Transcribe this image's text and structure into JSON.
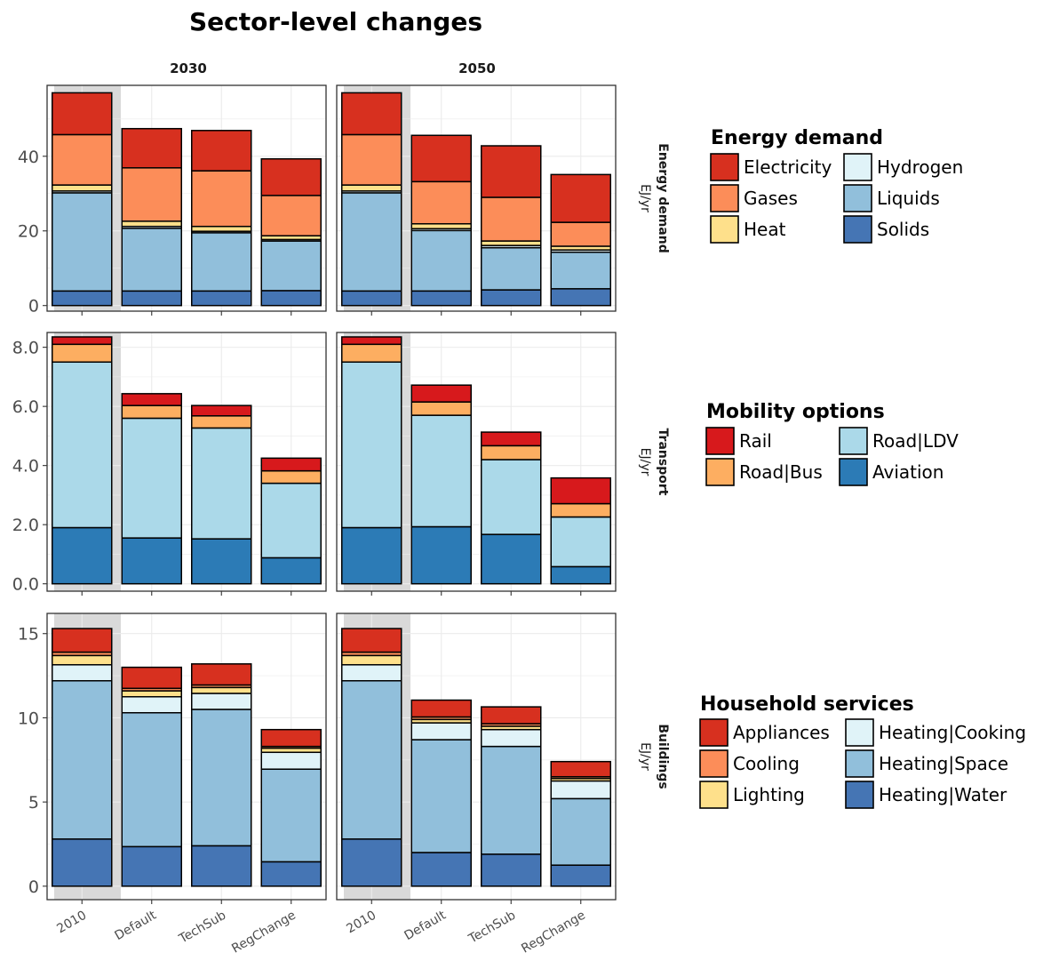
{
  "title": "Sector-level changes",
  "facet_columns": [
    "2030",
    "2050"
  ],
  "categories": [
    "2010",
    "Default",
    "TechSub",
    "RegChange"
  ],
  "chart_data": [
    {
      "type": "bar",
      "stacked": true,
      "panel_label": "Energy demand",
      "ylabel": "EJ/yr",
      "ylim": [
        -1.5,
        59
      ],
      "yticks": [
        0,
        20,
        40
      ],
      "tick_format": "int",
      "legend": {
        "title": "Energy demand",
        "placement": "right",
        "entries": [
          "Electricity",
          "Gases",
          "Heat",
          "Hydrogen",
          "Liquids",
          "Solids"
        ]
      },
      "stack_order": [
        "Solids",
        "Liquids",
        "Hydrogen",
        "Heat",
        "Gases",
        "Electricity"
      ],
      "colors": {
        "Electricity": "#d7301f",
        "Gases": "#fc8d59",
        "Heat": "#fee08b",
        "Hydrogen": "#e0f3f8",
        "Liquids": "#91bfdb",
        "Solids": "#4575b4"
      },
      "panels": [
        {
          "column": "2030",
          "series": [
            {
              "name": "Solids",
              "values": [
                3.9,
                3.9,
                3.9,
                4.0
              ]
            },
            {
              "name": "Liquids",
              "values": [
                26.3,
                16.8,
                15.6,
                13.3
              ]
            },
            {
              "name": "Hydrogen",
              "values": [
                0.5,
                0.5,
                0.4,
                0.4
              ]
            },
            {
              "name": "Heat",
              "values": [
                1.6,
                1.4,
                1.3,
                1.0
              ]
            },
            {
              "name": "Gases",
              "values": [
                13.5,
                14.3,
                14.9,
                10.8
              ]
            },
            {
              "name": "Electricity",
              "values": [
                11.2,
                10.5,
                10.8,
                9.8
              ]
            }
          ]
        },
        {
          "column": "2050",
          "series": [
            {
              "name": "Solids",
              "values": [
                3.9,
                3.9,
                4.2,
                4.5
              ]
            },
            {
              "name": "Liquids",
              "values": [
                26.3,
                16.2,
                11.3,
                9.8
              ]
            },
            {
              "name": "Hydrogen",
              "values": [
                0.5,
                0.5,
                0.6,
                0.6
              ]
            },
            {
              "name": "Heat",
              "values": [
                1.6,
                1.3,
                1.2,
                1.0
              ]
            },
            {
              "name": "Gases",
              "values": [
                13.5,
                11.3,
                11.7,
                6.4
              ]
            },
            {
              "name": "Electricity",
              "values": [
                11.2,
                12.4,
                13.8,
                12.8
              ]
            }
          ]
        }
      ]
    },
    {
      "type": "bar",
      "stacked": true,
      "panel_label": "Transport",
      "ylabel": "EJ/yr",
      "ylim": [
        -0.25,
        8.5
      ],
      "yticks": [
        0,
        2,
        4,
        6,
        8
      ],
      "tick_format": "fixed1",
      "legend": {
        "title": "Mobility options",
        "placement": "right",
        "entries": [
          "Rail",
          "Road|Bus",
          "Road|LDV",
          "Aviation"
        ]
      },
      "stack_order": [
        "Aviation",
        "Road|LDV",
        "Road|Bus",
        "Rail"
      ],
      "colors": {
        "Rail": "#d7191c",
        "Road|Bus": "#fdae61",
        "Road|LDV": "#abd9e9",
        "Aviation": "#2c7bb6"
      },
      "panels": [
        {
          "column": "2030",
          "series": [
            {
              "name": "Aviation",
              "values": [
                1.9,
                1.55,
                1.52,
                0.88
              ]
            },
            {
              "name": "Road|LDV",
              "values": [
                5.6,
                4.05,
                3.75,
                2.52
              ]
            },
            {
              "name": "Road|Bus",
              "values": [
                0.6,
                0.43,
                0.41,
                0.42
              ]
            },
            {
              "name": "Rail",
              "values": [
                0.25,
                0.4,
                0.35,
                0.43
              ]
            }
          ]
        },
        {
          "column": "2050",
          "series": [
            {
              "name": "Aviation",
              "values": [
                1.9,
                1.93,
                1.67,
                0.58
              ]
            },
            {
              "name": "Road|LDV",
              "values": [
                5.6,
                3.77,
                2.53,
                1.68
              ]
            },
            {
              "name": "Road|Bus",
              "values": [
                0.6,
                0.45,
                0.47,
                0.45
              ]
            },
            {
              "name": "Rail",
              "values": [
                0.25,
                0.57,
                0.46,
                0.87
              ]
            }
          ]
        }
      ]
    },
    {
      "type": "bar",
      "stacked": true,
      "panel_label": "Buildings",
      "ylabel": "EJ/yr",
      "ylim": [
        -0.8,
        16.2
      ],
      "yticks": [
        0,
        5,
        10,
        15
      ],
      "tick_format": "int",
      "legend": {
        "title": "Household services",
        "placement": "right",
        "entries": [
          "Appliances",
          "Cooling",
          "Lighting",
          "Heating|Cooking",
          "Heating|Space",
          "Heating|Water"
        ]
      },
      "stack_order": [
        "Heating|Water",
        "Heating|Space",
        "Heating|Cooking",
        "Lighting",
        "Cooling",
        "Appliances"
      ],
      "colors": {
        "Appliances": "#d7301f",
        "Cooling": "#fc8d59",
        "Lighting": "#fee08b",
        "Heating|Cooking": "#e0f3f8",
        "Heating|Space": "#91bfdb",
        "Heating|Water": "#4575b4"
      },
      "panels": [
        {
          "column": "2030",
          "series": [
            {
              "name": "Heating|Water",
              "values": [
                2.8,
                2.35,
                2.4,
                1.45
              ]
            },
            {
              "name": "Heating|Space",
              "values": [
                9.4,
                7.95,
                8.1,
                5.5
              ]
            },
            {
              "name": "Heating|Cooking",
              "values": [
                0.95,
                0.95,
                0.95,
                1.0
              ]
            },
            {
              "name": "Lighting",
              "values": [
                0.55,
                0.35,
                0.35,
                0.25
              ]
            },
            {
              "name": "Cooling",
              "values": [
                0.2,
                0.15,
                0.15,
                0.1
              ]
            },
            {
              "name": "Appliances",
              "values": [
                1.4,
                1.25,
                1.25,
                1.0
              ]
            }
          ]
        },
        {
          "column": "2050",
          "series": [
            {
              "name": "Heating|Water",
              "values": [
                2.8,
                2.0,
                1.9,
                1.25
              ]
            },
            {
              "name": "Heating|Space",
              "values": [
                9.4,
                6.7,
                6.4,
                3.95
              ]
            },
            {
              "name": "Heating|Cooking",
              "values": [
                0.95,
                1.0,
                1.0,
                1.05
              ]
            },
            {
              "name": "Lighting",
              "values": [
                0.55,
                0.2,
                0.2,
                0.15
              ]
            },
            {
              "name": "Cooling",
              "values": [
                0.2,
                0.15,
                0.15,
                0.1
              ]
            },
            {
              "name": "Appliances",
              "values": [
                1.4,
                1.0,
                1.0,
                0.9
              ]
            }
          ]
        }
      ]
    }
  ]
}
